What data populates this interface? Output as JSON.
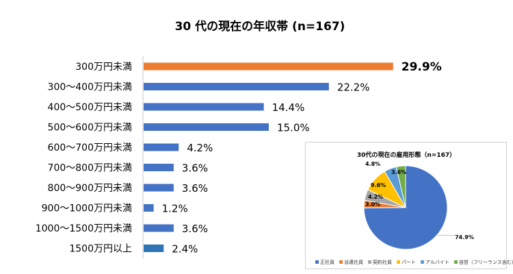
{
  "chart_data": [
    {
      "type": "bar",
      "orientation": "horizontal",
      "title": "30 代の現在の年収帯 (n=167)",
      "categories": [
        "300万円未満",
        "300～400万円未満",
        "400～500万円未満",
        "500～600万円未満",
        "600～700万円未満",
        "700～800万円未満",
        "800～900万円未満",
        "900～1000万円未満",
        "1000～1500万円未満",
        "1500万円以上"
      ],
      "values": [
        29.9,
        22.2,
        14.4,
        15.0,
        4.2,
        3.6,
        3.6,
        1.2,
        3.6,
        2.4
      ],
      "value_labels": [
        "29.9%",
        "22.2%",
        "14.4%",
        "15.0%",
        "4.2%",
        "3.6%",
        "3.6%",
        "1.2%",
        "3.6%",
        "2.4%"
      ],
      "unit": "%",
      "xlim": [
        0,
        35
      ],
      "highlight_index": 0,
      "colors": {
        "highlight": "#ED7D31",
        "default": "#4472C4",
        "last": "#2E75B6"
      }
    },
    {
      "type": "pie",
      "title": "30代の現在の雇用形態（n=167）",
      "labels": [
        "正社員",
        "派遣社員",
        "契約社員",
        "パート",
        "アルバイト",
        "自営（フリーランス含む）"
      ],
      "values": [
        74.9,
        3.0,
        4.2,
        9.6,
        4.8,
        3.6
      ],
      "value_labels": [
        "74.9%",
        "3.0%",
        "4.2%",
        "9.6%",
        "4.8%",
        "3.6%"
      ],
      "colors": [
        "#4472C4",
        "#ED7D31",
        "#A5A5A5",
        "#FFC000",
        "#5B9BD5",
        "#70AD47"
      ]
    }
  ]
}
